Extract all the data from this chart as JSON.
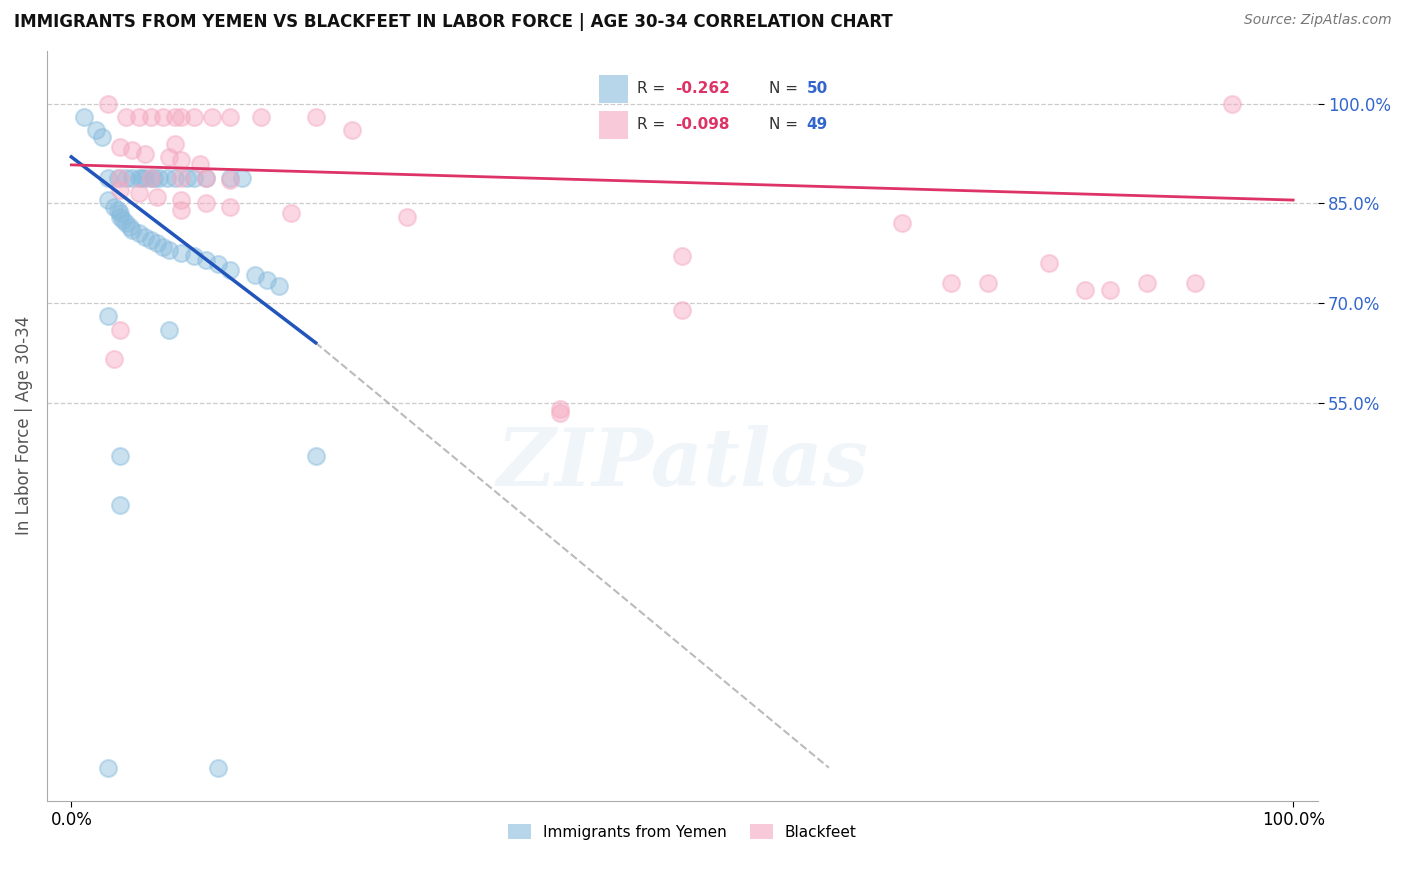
{
  "title": "IMMIGRANTS FROM YEMEN VS BLACKFEET IN LABOR FORCE | AGE 30-34 CORRELATION CHART",
  "source": "Source: ZipAtlas.com",
  "ylabel": "In Labor Force | Age 30-34",
  "xlim": [
    -0.02,
    1.02
  ],
  "ylim": [
    -0.05,
    1.08
  ],
  "ytick_positions": [
    0.55,
    0.7,
    0.85,
    1.0
  ],
  "ytick_labels": [
    "55.0%",
    "70.0%",
    "85.0%",
    "100.0%"
  ],
  "xtick_positions": [
    0.0,
    1.0
  ],
  "xtick_labels": [
    "0.0%",
    "100.0%"
  ],
  "legend_entries": [
    {
      "label": "Immigrants from Yemen",
      "color": "#aaccee"
    },
    {
      "label": "Blackfeet",
      "color": "#f4b8c8"
    }
  ],
  "r_blue": "-0.262",
  "n_blue": "50",
  "r_pink": "-0.098",
  "n_pink": "49",
  "watermark_text": "ZIPatlas",
  "blue_color": "#88bbdd",
  "pink_color": "#f4a8c0",
  "trend_blue_color": "#2255bb",
  "trend_pink_color": "#dd3366",
  "trend_dashed_color": "#aaaaaa",
  "stat_label_color": "#3366cc",
  "stat_value_color": "#dd3366",
  "blue_scatter": [
    [
      0.01,
      0.98
    ],
    [
      0.02,
      0.96
    ],
    [
      0.025,
      0.95
    ],
    [
      0.03,
      0.888
    ],
    [
      0.038,
      0.888
    ],
    [
      0.045,
      0.888
    ],
    [
      0.05,
      0.888
    ],
    [
      0.055,
      0.888
    ],
    [
      0.058,
      0.888
    ],
    [
      0.06,
      0.888
    ],
    [
      0.065,
      0.888
    ],
    [
      0.068,
      0.888
    ],
    [
      0.072,
      0.888
    ],
    [
      0.078,
      0.888
    ],
    [
      0.085,
      0.888
    ],
    [
      0.095,
      0.888
    ],
    [
      0.1,
      0.888
    ],
    [
      0.11,
      0.888
    ],
    [
      0.13,
      0.888
    ],
    [
      0.14,
      0.888
    ],
    [
      0.03,
      0.855
    ],
    [
      0.035,
      0.845
    ],
    [
      0.038,
      0.84
    ],
    [
      0.04,
      0.835
    ],
    [
      0.04,
      0.83
    ],
    [
      0.042,
      0.825
    ],
    [
      0.045,
      0.82
    ],
    [
      0.048,
      0.815
    ],
    [
      0.05,
      0.81
    ],
    [
      0.055,
      0.805
    ],
    [
      0.06,
      0.8
    ],
    [
      0.065,
      0.795
    ],
    [
      0.07,
      0.79
    ],
    [
      0.075,
      0.785
    ],
    [
      0.08,
      0.78
    ],
    [
      0.09,
      0.775
    ],
    [
      0.1,
      0.77
    ],
    [
      0.11,
      0.765
    ],
    [
      0.12,
      0.758
    ],
    [
      0.13,
      0.75
    ],
    [
      0.15,
      0.742
    ],
    [
      0.16,
      0.735
    ],
    [
      0.17,
      0.725
    ],
    [
      0.03,
      0.68
    ],
    [
      0.08,
      0.66
    ],
    [
      0.04,
      0.47
    ],
    [
      0.04,
      0.395
    ],
    [
      0.03,
      0.0
    ],
    [
      0.12,
      0.0
    ],
    [
      0.2,
      0.47
    ]
  ],
  "pink_scatter": [
    [
      0.03,
      1.0
    ],
    [
      0.045,
      0.98
    ],
    [
      0.055,
      0.98
    ],
    [
      0.065,
      0.98
    ],
    [
      0.075,
      0.98
    ],
    [
      0.085,
      0.98
    ],
    [
      0.09,
      0.98
    ],
    [
      0.1,
      0.98
    ],
    [
      0.115,
      0.98
    ],
    [
      0.13,
      0.98
    ],
    [
      0.155,
      0.98
    ],
    [
      0.2,
      0.98
    ],
    [
      0.23,
      0.96
    ],
    [
      0.085,
      0.94
    ],
    [
      0.04,
      0.935
    ],
    [
      0.05,
      0.93
    ],
    [
      0.06,
      0.925
    ],
    [
      0.08,
      0.92
    ],
    [
      0.09,
      0.915
    ],
    [
      0.105,
      0.91
    ],
    [
      0.04,
      0.888
    ],
    [
      0.065,
      0.888
    ],
    [
      0.09,
      0.888
    ],
    [
      0.11,
      0.888
    ],
    [
      0.13,
      0.885
    ],
    [
      0.04,
      0.87
    ],
    [
      0.055,
      0.865
    ],
    [
      0.07,
      0.86
    ],
    [
      0.09,
      0.855
    ],
    [
      0.11,
      0.85
    ],
    [
      0.13,
      0.845
    ],
    [
      0.09,
      0.84
    ],
    [
      0.18,
      0.835
    ],
    [
      0.275,
      0.83
    ],
    [
      0.5,
      0.77
    ],
    [
      0.68,
      0.82
    ],
    [
      0.72,
      0.73
    ],
    [
      0.75,
      0.73
    ],
    [
      0.8,
      0.76
    ],
    [
      0.83,
      0.72
    ],
    [
      0.85,
      0.72
    ],
    [
      0.88,
      0.73
    ],
    [
      0.92,
      0.73
    ],
    [
      0.95,
      1.0
    ],
    [
      0.5,
      0.69
    ],
    [
      0.4,
      0.535
    ],
    [
      0.04,
      0.66
    ],
    [
      0.035,
      0.615
    ],
    [
      0.4,
      0.54
    ]
  ],
  "blue_trend_x": [
    0.0,
    0.2
  ],
  "blue_trend_y": [
    0.92,
    0.64
  ],
  "pink_trend_x": [
    0.0,
    1.0
  ],
  "pink_trend_y": [
    0.908,
    0.855
  ],
  "dashed_trend_x": [
    0.2,
    0.62
  ],
  "dashed_trend_y": [
    0.64,
    0.0
  ]
}
